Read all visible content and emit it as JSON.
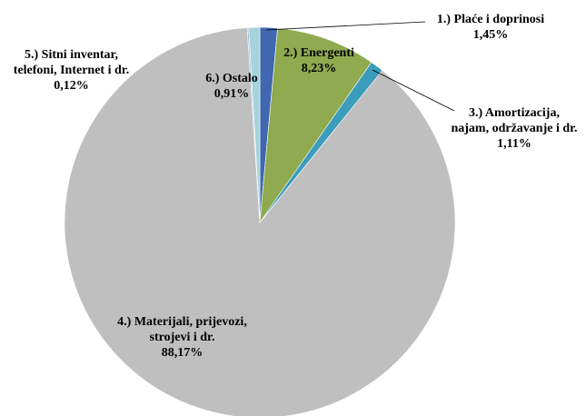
{
  "chart_data": {
    "type": "pie",
    "categories": [
      "1.) Plaće i doprinosi",
      "2.) Energenti",
      "3.) Amortizacija, najam, održavanje i dr.",
      "4.) Materijali, prijevozi, strojevi i dr.",
      "5.) Sitni inventar, telefoni, Internet i dr.",
      "6.) Ostalo"
    ],
    "values": [
      1.45,
      8.23,
      1.11,
      88.17,
      0.12,
      0.91
    ],
    "value_labels": [
      "1,45%",
      "8,23%",
      "1,11%",
      "88,17%",
      "0,12%",
      "0,91%"
    ],
    "colors": [
      "#3f68b0",
      "#8faa4f",
      "#3b9cbc",
      "#bfbfbf",
      "#9fb3d6",
      "#a6d3dc"
    ]
  }
}
